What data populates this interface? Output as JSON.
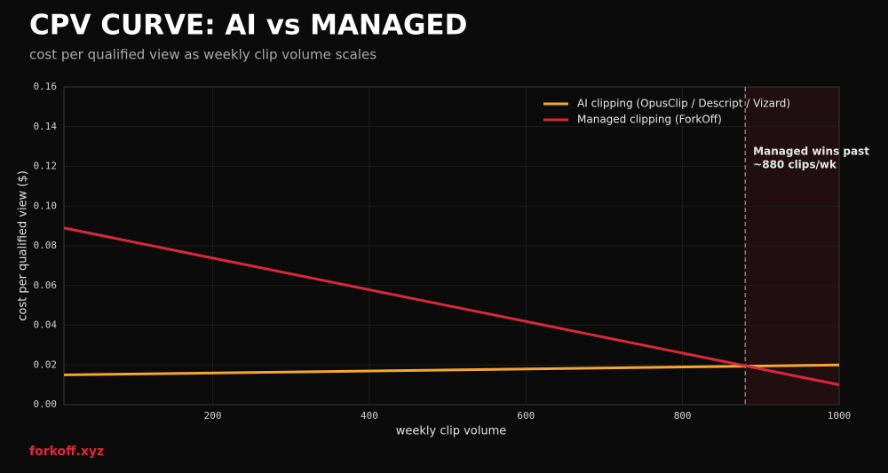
{
  "chart_data": {
    "type": "line",
    "title": "CPV CURVE: AI vs MANAGED",
    "subtitle": "cost per qualified view as weekly clip volume scales",
    "x_label": "weekly clip volume",
    "y_label": "cost per qualified view ($)",
    "x": [
      10,
      1000
    ],
    "series": [
      {
        "name": "AI clipping (OpusClip / Descript / Vizard)",
        "color": "#f5a731",
        "values": [
          0.015,
          0.02
        ]
      },
      {
        "name": "Managed clipping (ForkOff)",
        "color": "#d9283a",
        "values": [
          0.089,
          0.01
        ]
      }
    ],
    "xlim": [
      10,
      1000
    ],
    "ylim": [
      0,
      0.16
    ],
    "xticks": [
      200,
      400,
      600,
      800,
      1000
    ],
    "yticks": [
      {
        "value": 0,
        "label": "0.00"
      },
      {
        "value": 0.02,
        "label": "0.02"
      },
      {
        "value": 0.04,
        "label": "0.04"
      },
      {
        "value": 0.06,
        "label": "0.06"
      },
      {
        "value": 0.08,
        "label": "0.08"
      },
      {
        "value": 0.1,
        "label": "0.10"
      },
      {
        "value": 0.12,
        "label": "0.12"
      },
      {
        "value": 0.14,
        "label": "0.14"
      },
      {
        "value": 0.16,
        "label": "0.16"
      }
    ],
    "grid": true,
    "legend": "upper right",
    "threshold": {
      "x": 880,
      "lines": [
        "Managed wins past",
        "~880 clips/wk"
      ]
    },
    "footer": "forkoff.xyz"
  }
}
